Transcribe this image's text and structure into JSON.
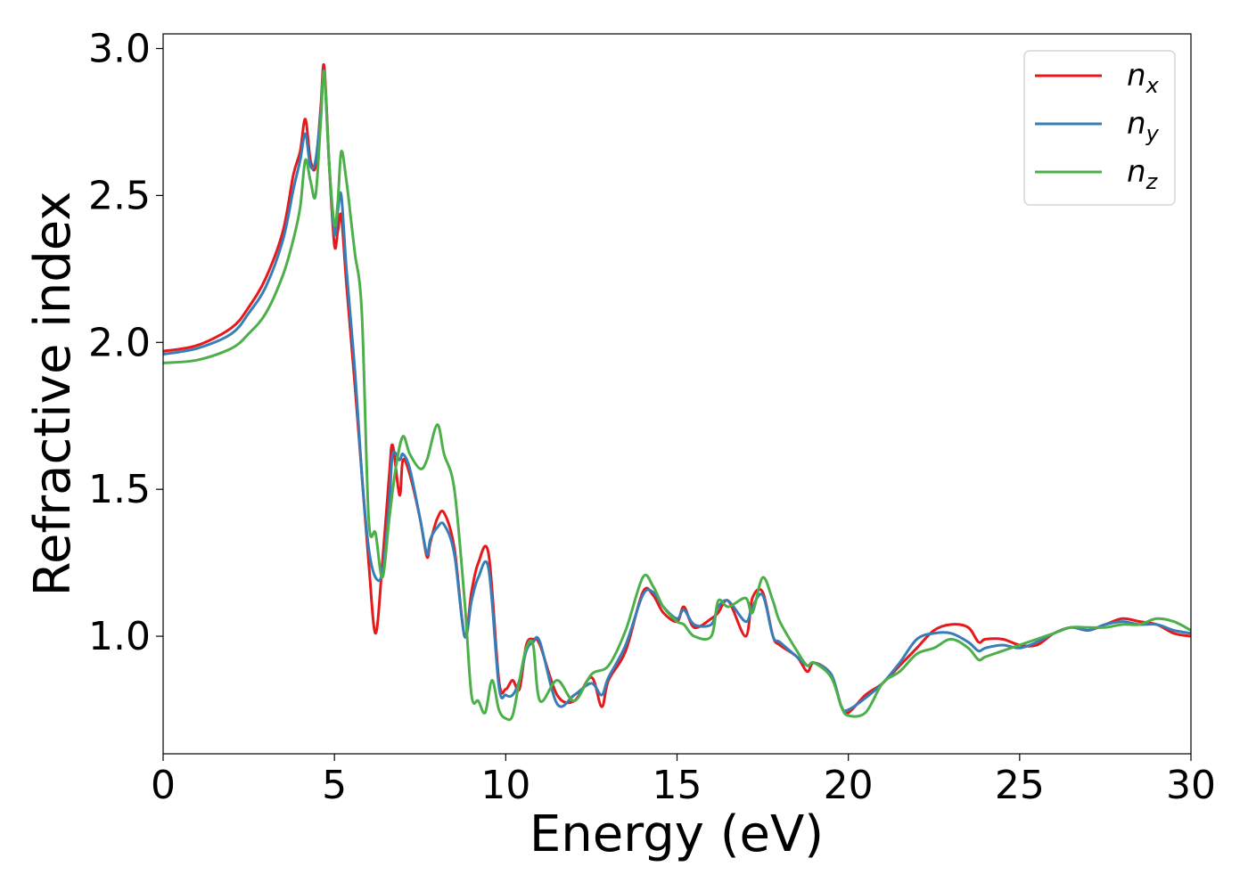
{
  "chart_data": {
    "type": "line",
    "title": "",
    "xlabel": "Energy (eV)",
    "ylabel": "Refractive index",
    "xlim": [
      0,
      30
    ],
    "ylim": [
      0.6,
      3.05
    ],
    "xticks": [
      0,
      5,
      10,
      15,
      20,
      25,
      30
    ],
    "xtick_labels": [
      "0",
      "5",
      "10",
      "15",
      "20",
      "25",
      "30"
    ],
    "yticks": [
      1.0,
      1.5,
      2.0,
      2.5,
      3.0
    ],
    "ytick_labels": [
      "1.0",
      "1.5",
      "2.0",
      "2.5",
      "3.0"
    ],
    "grid": false,
    "legend_position": "top-right",
    "series": [
      {
        "name": "n",
        "subscript": "x",
        "color": "#e41a1c",
        "x": [
          0,
          1,
          2,
          2.5,
          3,
          3.5,
          3.8,
          4.0,
          4.15,
          4.3,
          4.45,
          4.6,
          4.7,
          4.85,
          5.0,
          5.1,
          5.2,
          5.35,
          5.6,
          5.8,
          6.0,
          6.2,
          6.4,
          6.6,
          6.7,
          6.9,
          7.0,
          7.2,
          7.5,
          7.7,
          7.8,
          8.0,
          8.2,
          8.5,
          8.8,
          9.0,
          9.2,
          9.5,
          9.8,
          10.0,
          10.2,
          10.4,
          10.6,
          10.8,
          11.0,
          11.5,
          12.0,
          12.5,
          12.8,
          13.0,
          13.5,
          14.0,
          14.3,
          14.6,
          15.0,
          15.2,
          15.5,
          16.0,
          16.2,
          16.5,
          17.0,
          17.2,
          17.5,
          17.8,
          18.0,
          18.5,
          18.8,
          19.0,
          19.5,
          19.8,
          20.0,
          20.5,
          21.0,
          21.5,
          22.0,
          22.5,
          23.0,
          23.5,
          23.8,
          24.0,
          24.5,
          25.0,
          25.5,
          26.0,
          26.5,
          27.0,
          27.5,
          28.0,
          28.5,
          29.0,
          29.5,
          30.0
        ],
        "y": [
          1.97,
          1.99,
          2.05,
          2.12,
          2.22,
          2.38,
          2.57,
          2.65,
          2.76,
          2.62,
          2.6,
          2.8,
          2.94,
          2.6,
          2.33,
          2.38,
          2.43,
          2.2,
          1.85,
          1.55,
          1.25,
          1.01,
          1.25,
          1.55,
          1.65,
          1.48,
          1.6,
          1.55,
          1.4,
          1.27,
          1.32,
          1.4,
          1.42,
          1.3,
          1.0,
          1.15,
          1.25,
          1.28,
          0.85,
          0.82,
          0.85,
          0.82,
          0.97,
          0.99,
          0.97,
          0.8,
          0.78,
          0.86,
          0.76,
          0.85,
          0.95,
          1.15,
          1.14,
          1.08,
          1.05,
          1.1,
          1.03,
          1.06,
          1.08,
          1.12,
          1.0,
          1.13,
          1.15,
          1.0,
          0.97,
          0.93,
          0.88,
          0.91,
          0.87,
          0.76,
          0.74,
          0.8,
          0.84,
          0.9,
          0.96,
          1.02,
          1.04,
          1.03,
          0.98,
          0.99,
          0.99,
          0.97,
          0.97,
          1.01,
          1.03,
          1.02,
          1.04,
          1.06,
          1.05,
          1.04,
          1.01,
          1.0
        ]
      },
      {
        "name": "n",
        "subscript": "y",
        "color": "#377eb8",
        "x": [
          0,
          1,
          2,
          2.5,
          3,
          3.5,
          3.8,
          4.0,
          4.15,
          4.3,
          4.45,
          4.6,
          4.7,
          4.85,
          5.0,
          5.1,
          5.2,
          5.35,
          5.6,
          5.8,
          6.0,
          6.2,
          6.4,
          6.6,
          6.7,
          6.9,
          7.0,
          7.2,
          7.5,
          7.7,
          7.8,
          8.0,
          8.2,
          8.5,
          8.8,
          9.0,
          9.2,
          9.5,
          9.8,
          10.0,
          10.2,
          10.4,
          10.6,
          10.8,
          11.0,
          11.5,
          12.0,
          12.5,
          12.8,
          13.0,
          13.5,
          14.0,
          14.3,
          14.6,
          15.0,
          15.2,
          15.5,
          16.0,
          16.2,
          16.5,
          17.0,
          17.2,
          17.5,
          17.8,
          18.0,
          18.5,
          18.8,
          19.0,
          19.5,
          19.8,
          20.0,
          20.5,
          21.0,
          21.5,
          22.0,
          22.5,
          23.0,
          23.5,
          23.8,
          24.0,
          24.5,
          25.0,
          25.5,
          26.0,
          26.5,
          27.0,
          27.5,
          28.0,
          28.5,
          29.0,
          29.5,
          30.0
        ],
        "y": [
          1.96,
          1.98,
          2.03,
          2.1,
          2.19,
          2.35,
          2.52,
          2.62,
          2.71,
          2.6,
          2.62,
          2.78,
          2.92,
          2.6,
          2.37,
          2.45,
          2.5,
          2.25,
          1.9,
          1.55,
          1.3,
          1.2,
          1.22,
          1.45,
          1.62,
          1.6,
          1.62,
          1.57,
          1.4,
          1.28,
          1.33,
          1.37,
          1.38,
          1.28,
          1.0,
          1.12,
          1.2,
          1.23,
          0.83,
          0.8,
          0.8,
          0.85,
          0.95,
          0.98,
          0.98,
          0.77,
          0.8,
          0.84,
          0.8,
          0.86,
          0.97,
          1.14,
          1.15,
          1.1,
          1.06,
          1.09,
          1.04,
          1.04,
          1.1,
          1.12,
          1.05,
          1.1,
          1.14,
          1.0,
          0.98,
          0.93,
          0.9,
          0.91,
          0.87,
          0.76,
          0.75,
          0.79,
          0.84,
          0.91,
          0.99,
          1.01,
          1.01,
          0.98,
          0.95,
          0.96,
          0.97,
          0.96,
          0.98,
          1.01,
          1.03,
          1.02,
          1.04,
          1.05,
          1.04,
          1.04,
          1.02,
          1.01
        ]
      },
      {
        "name": "n",
        "subscript": "z",
        "color": "#4daf4a",
        "x": [
          0,
          1,
          2,
          2.5,
          3,
          3.5,
          3.8,
          4.0,
          4.15,
          4.3,
          4.45,
          4.6,
          4.7,
          4.85,
          5.0,
          5.1,
          5.2,
          5.35,
          5.5,
          5.6,
          5.8,
          6.0,
          6.2,
          6.4,
          6.6,
          6.8,
          7.0,
          7.2,
          7.5,
          7.7,
          8.0,
          8.2,
          8.5,
          8.8,
          9.0,
          9.2,
          9.4,
          9.6,
          9.8,
          10.0,
          10.2,
          10.4,
          10.6,
          10.8,
          11.0,
          11.5,
          12.0,
          12.5,
          13.0,
          13.5,
          14.0,
          14.3,
          14.6,
          15.0,
          15.2,
          15.5,
          16.0,
          16.2,
          16.5,
          17.0,
          17.2,
          17.5,
          17.8,
          18.0,
          18.5,
          18.8,
          19.0,
          19.5,
          19.8,
          20.0,
          20.5,
          21.0,
          21.5,
          22.0,
          22.5,
          23.0,
          23.5,
          23.8,
          24.0,
          24.5,
          25.0,
          25.5,
          26.0,
          26.5,
          27.0,
          27.5,
          28.0,
          28.5,
          29.0,
          29.5,
          30.0
        ],
        "y": [
          1.93,
          1.94,
          1.98,
          2.03,
          2.1,
          2.23,
          2.35,
          2.46,
          2.62,
          2.55,
          2.5,
          2.75,
          2.92,
          2.6,
          2.4,
          2.48,
          2.65,
          2.55,
          2.4,
          2.3,
          2.1,
          1.4,
          1.35,
          1.2,
          1.4,
          1.58,
          1.68,
          1.62,
          1.57,
          1.6,
          1.72,
          1.62,
          1.5,
          1.12,
          0.8,
          0.78,
          0.74,
          0.85,
          0.75,
          0.72,
          0.73,
          0.85,
          0.96,
          0.97,
          0.78,
          0.85,
          0.78,
          0.87,
          0.9,
          1.02,
          1.2,
          1.17,
          1.1,
          1.05,
          1.04,
          1.0,
          1.0,
          1.12,
          1.1,
          1.13,
          1.08,
          1.2,
          1.12,
          1.05,
          0.95,
          0.9,
          0.91,
          0.86,
          0.76,
          0.73,
          0.74,
          0.84,
          0.88,
          0.94,
          0.96,
          0.99,
          0.96,
          0.92,
          0.93,
          0.95,
          0.97,
          0.99,
          1.01,
          1.03,
          1.03,
          1.03,
          1.04,
          1.04,
          1.06,
          1.05,
          1.02
        ]
      }
    ]
  }
}
